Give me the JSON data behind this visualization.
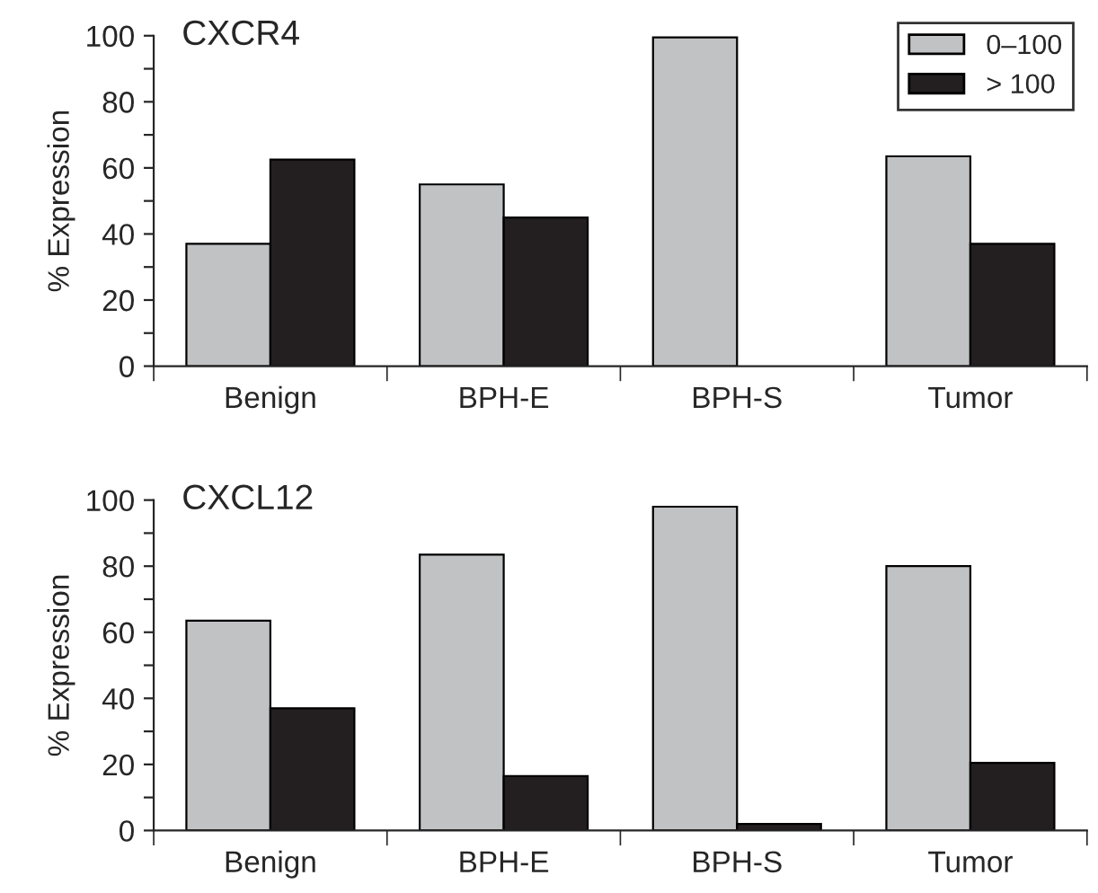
{
  "chart_data": [
    {
      "type": "bar",
      "title": "CXCR4",
      "ylabel": "% Expression",
      "categories": [
        "Benign",
        "BPH-E",
        "BPH-S",
        "Tumor"
      ],
      "series": [
        {
          "name": "0–100",
          "color": "#c0c2c4",
          "values": [
            37,
            55,
            99.5,
            63.5
          ]
        },
        {
          "name": "> 100",
          "color": "#231f20",
          "values": [
            62.5,
            45,
            null,
            37
          ]
        }
      ],
      "ylim": [
        0,
        100
      ],
      "yticks": [
        0,
        {
          "value": 10,
          "label": null
        },
        20,
        {
          "value": 30,
          "label": null
        },
        40,
        {
          "value": 50,
          "label": null
        },
        60,
        {
          "value": 70,
          "label": null
        },
        80,
        {
          "value": 90,
          "label": null
        },
        100
      ],
      "legend": "top right"
    },
    {
      "type": "bar",
      "title": "CXCL12",
      "ylabel": "% Expression",
      "categories": [
        "Benign",
        "BPH-E",
        "BPH-S",
        "Tumor"
      ],
      "series": [
        {
          "color": "#c0c2c4",
          "values": [
            63.5,
            83.5,
            98,
            80
          ]
        },
        {
          "color": "#231f20",
          "values": [
            37,
            16.5,
            2,
            20.5
          ]
        }
      ],
      "ylim": [
        0,
        100
      ],
      "yticks": [
        0,
        {
          "value": 10,
          "label": null
        },
        20,
        {
          "value": 30,
          "label": null
        },
        40,
        {
          "value": 50,
          "label": null
        },
        60,
        {
          "value": 70,
          "label": null
        },
        80,
        {
          "value": 90,
          "label": null
        },
        100
      ]
    }
  ]
}
